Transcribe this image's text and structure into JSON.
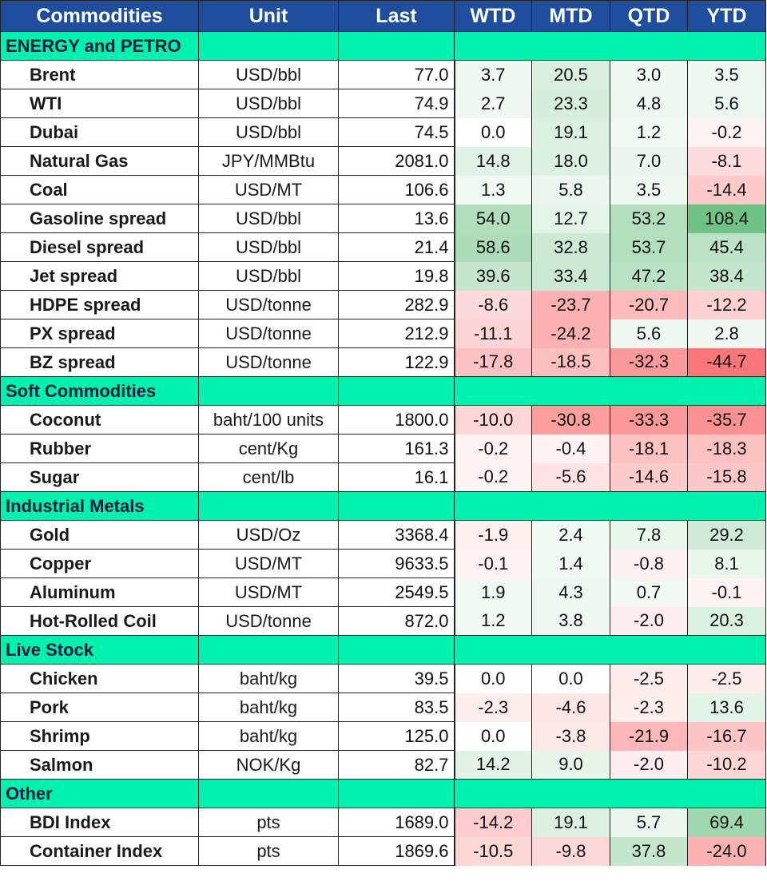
{
  "headers": [
    "Commodities",
    "Unit",
    "Last",
    "WTD",
    "MTD",
    "QTD",
    "YTD"
  ],
  "colors": {
    "header_bg": "#1f4e9e",
    "section_bg": "#00f2ae",
    "positive": "#63be7b",
    "negative": "#f8696b"
  },
  "sections": [
    {
      "title": "ENERGY and PETRO",
      "rows": [
        {
          "name": "Brent",
          "unit": "USD/bbl",
          "last": "77.0",
          "wtd": "3.7",
          "mtd": "20.5",
          "qtd": "3.0",
          "ytd": "3.5"
        },
        {
          "name": "WTI",
          "unit": "USD/bbl",
          "last": "74.9",
          "wtd": "2.7",
          "mtd": "23.3",
          "qtd": "4.8",
          "ytd": "5.6"
        },
        {
          "name": "Dubai",
          "unit": "USD/bbl",
          "last": "74.5",
          "wtd": "0.0",
          "mtd": "19.1",
          "qtd": "1.2",
          "ytd": "-0.2"
        },
        {
          "name": "Natural Gas",
          "unit": "JPY/MMBtu",
          "last": "2081.0",
          "wtd": "14.8",
          "mtd": "18.0",
          "qtd": "7.0",
          "ytd": "-8.1"
        },
        {
          "name": "Coal",
          "unit": "USD/MT",
          "last": "106.6",
          "wtd": "1.3",
          "mtd": "5.8",
          "qtd": "3.5",
          "ytd": "-14.4"
        },
        {
          "name": "Gasoline spread",
          "unit": "USD/bbl",
          "last": "13.6",
          "wtd": "54.0",
          "mtd": "12.7",
          "qtd": "53.2",
          "ytd": "108.4"
        },
        {
          "name": "Diesel spread",
          "unit": "USD/bbl",
          "last": "21.4",
          "wtd": "58.6",
          "mtd": "32.8",
          "qtd": "53.7",
          "ytd": "45.4"
        },
        {
          "name": "Jet spread",
          "unit": "USD/bbl",
          "last": "19.8",
          "wtd": "39.6",
          "mtd": "33.4",
          "qtd": "47.2",
          "ytd": "38.4"
        },
        {
          "name": "HDPE spread",
          "unit": "USD/tonne",
          "last": "282.9",
          "wtd": "-8.6",
          "mtd": "-23.7",
          "qtd": "-20.7",
          "ytd": "-12.2"
        },
        {
          "name": "PX spread",
          "unit": "USD/tonne",
          "last": "212.9",
          "wtd": "-11.1",
          "mtd": "-24.2",
          "qtd": "5.6",
          "ytd": "2.8"
        },
        {
          "name": "BZ spread",
          "unit": "USD/tonne",
          "last": "122.9",
          "wtd": "-17.8",
          "mtd": "-18.5",
          "qtd": "-32.3",
          "ytd": "-44.7"
        }
      ]
    },
    {
      "title": "Soft Commodities",
      "rows": [
        {
          "name": "Coconut",
          "unit": "baht/100 units",
          "last": "1800.0",
          "wtd": "-10.0",
          "mtd": "-30.8",
          "qtd": "-33.3",
          "ytd": "-35.7"
        },
        {
          "name": "Rubber",
          "unit": "cent/Kg",
          "last": "161.3",
          "wtd": "-0.2",
          "mtd": "-0.4",
          "qtd": "-18.1",
          "ytd": "-18.3"
        },
        {
          "name": "Sugar",
          "unit": "cent/lb",
          "last": "16.1",
          "wtd": "-0.2",
          "mtd": "-5.6",
          "qtd": "-14.6",
          "ytd": "-15.8"
        }
      ]
    },
    {
      "title": "Industrial Metals",
      "rows": [
        {
          "name": "Gold",
          "unit": "USD/Oz",
          "last": "3368.4",
          "wtd": "-1.9",
          "mtd": "2.4",
          "qtd": "7.8",
          "ytd": "29.2"
        },
        {
          "name": "Copper",
          "unit": "USD/MT",
          "last": "9633.5",
          "wtd": "-0.1",
          "mtd": "1.4",
          "qtd": "-0.8",
          "ytd": "8.1"
        },
        {
          "name": "Aluminum",
          "unit": "USD/MT",
          "last": "2549.5",
          "wtd": "1.9",
          "mtd": "4.3",
          "qtd": "0.7",
          "ytd": "-0.1"
        },
        {
          "name": "Hot-Rolled Coil",
          "unit": "USD/tonne",
          "last": "872.0",
          "wtd": "1.2",
          "mtd": "3.8",
          "qtd": "-2.0",
          "ytd": "20.3"
        }
      ]
    },
    {
      "title": "Live Stock",
      "rows": [
        {
          "name": "Chicken",
          "unit": "baht/kg",
          "last": "39.5",
          "wtd": "0.0",
          "mtd": "0.0",
          "qtd": "-2.5",
          "ytd": "-2.5"
        },
        {
          "name": "Pork",
          "unit": "baht/kg",
          "last": "83.5",
          "wtd": "-2.3",
          "mtd": "-4.6",
          "qtd": "-2.3",
          "ytd": "13.6"
        },
        {
          "name": "Shrimp",
          "unit": "baht/kg",
          "last": "125.0",
          "wtd": "0.0",
          "mtd": "-3.8",
          "qtd": "-21.9",
          "ytd": "-16.7"
        },
        {
          "name": "Salmon",
          "unit": "NOK/Kg",
          "last": "82.7",
          "wtd": "14.2",
          "mtd": "9.0",
          "qtd": "-2.0",
          "ytd": "-10.2"
        }
      ]
    },
    {
      "title": "Other",
      "rows": [
        {
          "name": "BDI Index",
          "unit": "pts",
          "last": "1689.0",
          "wtd": "-14.2",
          "mtd": "19.1",
          "qtd": "5.7",
          "ytd": "69.4"
        },
        {
          "name": "Container Index",
          "unit": "pts",
          "last": "1869.6",
          "wtd": "-10.5",
          "mtd": "-9.8",
          "qtd": "37.8",
          "ytd": "-24.0"
        }
      ]
    }
  ]
}
